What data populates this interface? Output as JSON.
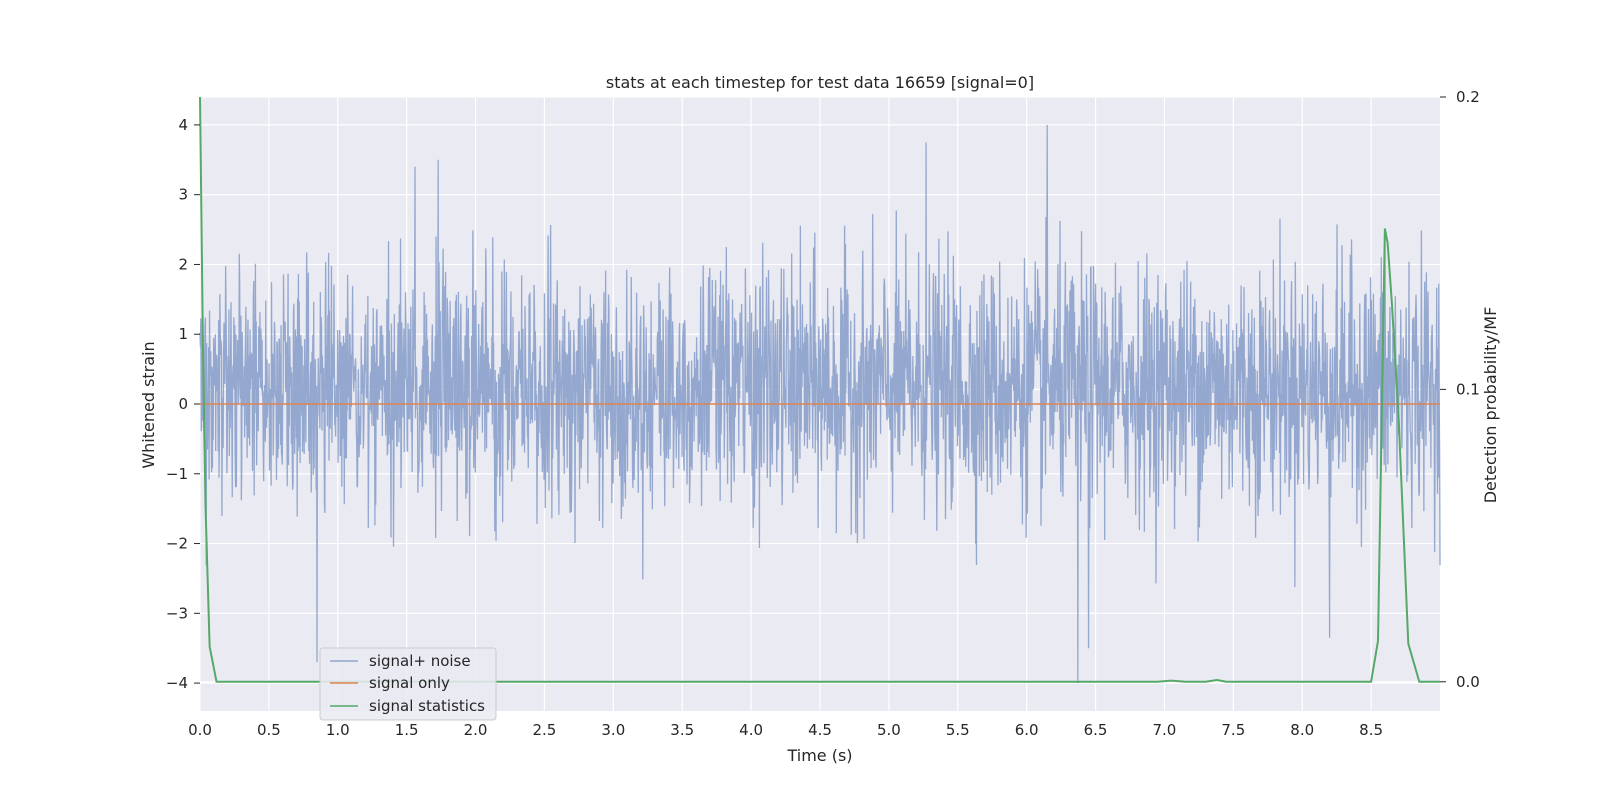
{
  "chart_data": {
    "type": "line",
    "title": "stats at each timestep for test data 16659 [signal=0]",
    "xlabel": "Time (s)",
    "ylabel": "Whitened strain",
    "y2label": "Detection probability/MF",
    "xlim": [
      0.0,
      9.0
    ],
    "ylim": [
      -4.4,
      4.4
    ],
    "y2lim": [
      -0.01,
      0.2
    ],
    "xticks": [
      "0.0",
      "0.5",
      "1.0",
      "1.5",
      "2.0",
      "2.5",
      "3.0",
      "3.5",
      "4.0",
      "4.5",
      "5.0",
      "5.5",
      "6.0",
      "6.5",
      "7.0",
      "7.5",
      "8.0",
      "8.5"
    ],
    "yticks": [
      "−4",
      "−3",
      "−2",
      "−1",
      "0",
      "1",
      "2",
      "3",
      "4"
    ],
    "y2ticks": [
      "0.0",
      "0.1",
      "0.2"
    ],
    "grid": true,
    "legend_position": "lower-left",
    "series": [
      {
        "name": "signal+ noise",
        "color": "#8fa4cc",
        "axis": "left",
        "description_values": {
          "noise_band_typical": [
            -1.6,
            2.0
          ],
          "peaks": [
            [
              1.56,
              3.4
            ],
            [
              1.73,
              3.5
            ],
            [
              5.27,
              3.75
            ],
            [
              6.15,
              4.0
            ],
            [
              8.6,
              2.3
            ],
            [
              0.85,
              -3.7
            ],
            [
              6.37,
              -4.0
            ],
            [
              6.45,
              -3.5
            ],
            [
              8.2,
              -3.35
            ]
          ]
        }
      },
      {
        "name": "signal only",
        "color": "#dd8452",
        "axis": "left",
        "x": [
          0.0,
          9.0
        ],
        "values": [
          0.0,
          0.0
        ]
      },
      {
        "name": "signal statistics",
        "color": "#55a868",
        "axis": "right",
        "x": [
          0.0,
          0.02,
          0.04,
          0.07,
          0.12,
          0.5,
          1.0,
          2.0,
          3.0,
          4.0,
          5.0,
          6.0,
          6.95,
          7.05,
          7.15,
          7.3,
          7.38,
          7.45,
          7.6,
          8.0,
          8.5,
          8.55,
          8.6,
          8.62,
          8.65,
          8.7,
          8.77,
          8.85,
          9.0
        ],
        "values": [
          0.2,
          0.12,
          0.06,
          0.012,
          0.0,
          0.0,
          0.0,
          0.0,
          0.0,
          0.0,
          0.0,
          0.0,
          0.0,
          0.0004,
          0.0,
          0.0,
          0.0006,
          0.0,
          0.0,
          0.0,
          0.0,
          0.014,
          0.155,
          0.15,
          0.13,
          0.09,
          0.013,
          0.0,
          0.0
        ]
      }
    ]
  }
}
